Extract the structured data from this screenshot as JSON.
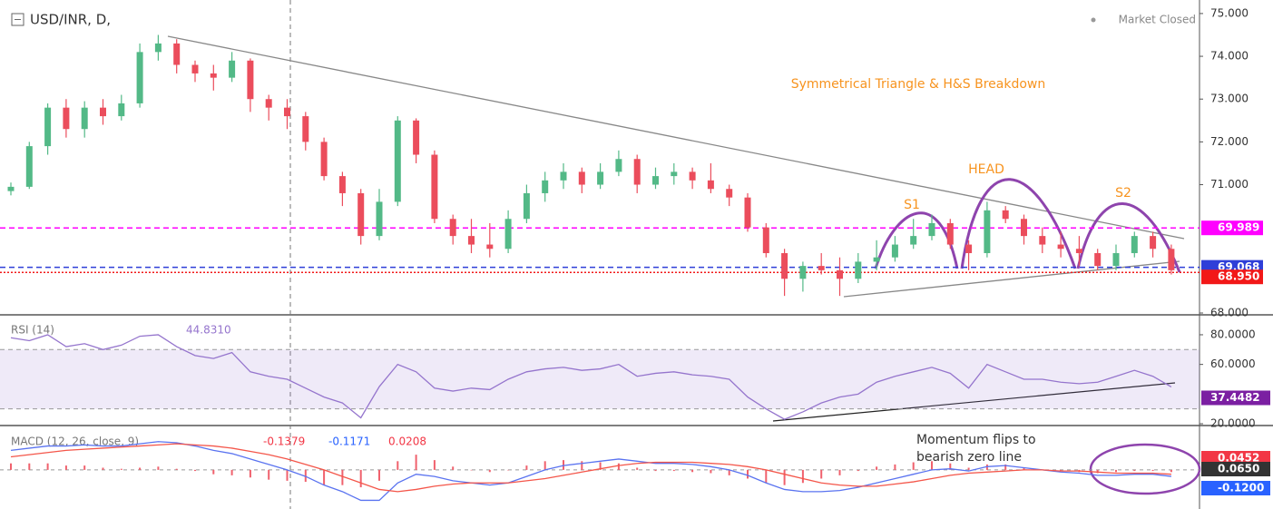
{
  "chart_data": [
    {
      "type": "candlestick",
      "title": "USD/INR, D,",
      "status": "Market Closed",
      "annotation": "Symmetrical Triangle & H&S Breakdown",
      "pattern_labels": [
        "S1",
        "HEAD",
        "S2"
      ],
      "up_color": "#53b987",
      "down_color": "#eb4d5c",
      "ylim": [
        68.0,
        75.21
      ],
      "yticks": [
        {
          "value": 75,
          "label": "75.000"
        },
        {
          "value": 74,
          "label": "74.000"
        },
        {
          "value": 73,
          "label": "73.000"
        },
        {
          "value": 72,
          "label": "72.000"
        },
        {
          "value": 71,
          "label": "71.000"
        },
        {
          "value": 68,
          "label": "68.000"
        }
      ],
      "levels": [
        {
          "value": 69.989,
          "label": "69.989",
          "color": "#ff00ff",
          "style": "dashed"
        },
        {
          "value": 69.068,
          "label": "69.068",
          "color": "#2f3fd8",
          "style": "dashed"
        },
        {
          "value": 68.95,
          "label": "68.950",
          "color": "#f21818",
          "style": "dotted"
        }
      ],
      "ohlc": [
        [
          70.85,
          71.05,
          70.75,
          70.95
        ],
        [
          70.95,
          72.0,
          70.9,
          71.9
        ],
        [
          71.9,
          72.9,
          71.7,
          72.8
        ],
        [
          72.8,
          73.0,
          72.1,
          72.3
        ],
        [
          72.3,
          72.95,
          72.1,
          72.8
        ],
        [
          72.8,
          73.0,
          72.4,
          72.6
        ],
        [
          72.6,
          73.1,
          72.5,
          72.9
        ],
        [
          72.9,
          74.3,
          72.8,
          74.1
        ],
        [
          74.1,
          74.5,
          73.9,
          74.3
        ],
        [
          74.3,
          74.4,
          73.6,
          73.8
        ],
        [
          73.8,
          73.9,
          73.4,
          73.6
        ],
        [
          73.6,
          73.8,
          73.2,
          73.5
        ],
        [
          73.5,
          74.1,
          73.4,
          73.9
        ],
        [
          73.9,
          73.95,
          72.7,
          73.0
        ],
        [
          73.0,
          73.1,
          72.5,
          72.8
        ],
        [
          72.8,
          73.0,
          72.3,
          72.6
        ],
        [
          72.6,
          72.7,
          71.8,
          72.0
        ],
        [
          72.0,
          72.1,
          71.1,
          71.2
        ],
        [
          71.2,
          71.3,
          70.5,
          70.8
        ],
        [
          70.8,
          70.9,
          69.6,
          69.8
        ],
        [
          69.8,
          70.9,
          69.7,
          70.6
        ],
        [
          70.6,
          72.6,
          70.5,
          72.5
        ],
        [
          72.5,
          72.55,
          71.5,
          71.7
        ],
        [
          71.7,
          71.8,
          70.1,
          70.2
        ],
        [
          70.2,
          70.3,
          69.6,
          69.8
        ],
        [
          69.8,
          70.2,
          69.4,
          69.6
        ],
        [
          69.6,
          70.1,
          69.3,
          69.5
        ],
        [
          69.5,
          70.4,
          69.4,
          70.2
        ],
        [
          70.2,
          71.0,
          70.1,
          70.8
        ],
        [
          70.8,
          71.3,
          70.6,
          71.1
        ],
        [
          71.1,
          71.5,
          70.9,
          71.3
        ],
        [
          71.3,
          71.4,
          70.8,
          71.0
        ],
        [
          71.0,
          71.5,
          70.9,
          71.3
        ],
        [
          71.3,
          71.8,
          71.2,
          71.6
        ],
        [
          71.6,
          71.7,
          70.8,
          71.0
        ],
        [
          71.0,
          71.4,
          70.9,
          71.2
        ],
        [
          71.2,
          71.5,
          71.0,
          71.3
        ],
        [
          71.3,
          71.4,
          70.9,
          71.1
        ],
        [
          71.1,
          71.5,
          70.8,
          70.9
        ],
        [
          70.9,
          71.0,
          70.5,
          70.7
        ],
        [
          70.7,
          70.8,
          69.9,
          70.0
        ],
        [
          70.0,
          70.1,
          69.3,
          69.4
        ],
        [
          69.4,
          69.5,
          68.4,
          68.8
        ],
        [
          68.8,
          69.2,
          68.5,
          69.1
        ],
        [
          69.1,
          69.4,
          68.9,
          69.0
        ],
        [
          69.0,
          69.3,
          68.4,
          68.8
        ],
        [
          68.8,
          69.4,
          68.7,
          69.2
        ],
        [
          69.2,
          69.7,
          69.0,
          69.3
        ],
        [
          69.3,
          69.8,
          69.2,
          69.6
        ],
        [
          69.6,
          70.2,
          69.5,
          69.8
        ],
        [
          69.8,
          70.3,
          69.7,
          70.1
        ],
        [
          70.1,
          70.2,
          69.5,
          69.6
        ],
        [
          69.6,
          69.7,
          69.0,
          69.4
        ],
        [
          69.4,
          70.6,
          69.3,
          70.4
        ],
        [
          70.4,
          70.5,
          70.1,
          70.2
        ],
        [
          70.2,
          70.3,
          69.6,
          69.8
        ],
        [
          69.8,
          70.0,
          69.4,
          69.6
        ],
        [
          69.6,
          69.9,
          69.3,
          69.5
        ],
        [
          69.5,
          69.8,
          69.1,
          69.4
        ],
        [
          69.4,
          69.5,
          69.0,
          69.1
        ],
        [
          69.1,
          69.6,
          69.0,
          69.4
        ],
        [
          69.4,
          69.9,
          69.3,
          69.8
        ],
        [
          69.8,
          69.9,
          69.3,
          69.5
        ],
        [
          69.5,
          69.6,
          68.9,
          69.0
        ]
      ]
    },
    {
      "type": "line",
      "title": "RSI (14)",
      "last_value": {
        "value": 44.831,
        "label": "44.8310"
      },
      "marker": {
        "value": 37.4482,
        "label": "37.4482"
      },
      "color": "#9575cd",
      "band": [
        30,
        70
      ],
      "ylim": [
        19.4,
        91.6
      ],
      "yticks": [
        {
          "value": 80,
          "label": "80.0000"
        },
        {
          "value": 60,
          "label": "60.0000"
        },
        {
          "value": 20,
          "label": "20.0000"
        }
      ],
      "values": [
        78,
        76,
        80,
        72,
        74,
        70,
        73,
        79,
        80,
        72,
        66,
        64,
        68,
        55,
        52,
        50,
        44,
        38,
        34,
        24,
        45,
        60,
        55,
        44,
        42,
        44,
        43,
        50,
        55,
        57,
        58,
        56,
        57,
        60,
        52,
        54,
        55,
        53,
        52,
        50,
        38,
        30,
        23,
        28,
        34,
        38,
        40,
        48,
        52,
        55,
        58,
        54,
        44,
        60,
        55,
        50,
        50,
        48,
        47,
        48,
        52,
        56,
        52,
        44.83
      ]
    },
    {
      "type": "line",
      "title": "MACD (12, 26, close, 9)",
      "header_values": [
        -0.1379,
        -0.1171,
        0.0208
      ],
      "header_colors": [
        "#f23645",
        "#2962ff",
        "#f23645"
      ],
      "annotation": [
        "Momentum flips to",
        "bearish zero line"
      ],
      "markers": [
        {
          "value": 0.0452,
          "label": "0.0452",
          "color": "#f23645"
        },
        {
          "value": 0.065,
          "label": "0.0650",
          "color": "#333333"
        },
        {
          "value": -0.12,
          "label": "-0.1200",
          "color": "#2962ff"
        }
      ],
      "ylim": [
        -0.36,
        0.4
      ],
      "hist_color": "#f0616d",
      "histogram": [
        0.06,
        0.06,
        0.06,
        0.04,
        0.04,
        0.02,
        0.01,
        0.02,
        0.03,
        0.01,
        -0.01,
        -0.04,
        -0.05,
        -0.07,
        -0.09,
        -0.1,
        -0.11,
        -0.14,
        -0.14,
        -0.16,
        -0.1,
        0.08,
        0.14,
        0.09,
        0.03,
        0.0,
        -0.02,
        0.0,
        0.04,
        0.08,
        0.09,
        0.08,
        0.07,
        0.06,
        0.02,
        -0.01,
        -0.01,
        -0.02,
        -0.03,
        -0.05,
        -0.08,
        -0.12,
        -0.14,
        -0.12,
        -0.08,
        -0.05,
        -0.01,
        0.03,
        0.05,
        0.07,
        0.08,
        0.06,
        0.02,
        0.05,
        0.05,
        0.02,
        0.0,
        -0.01,
        -0.02,
        -0.03,
        -0.02,
        -0.01,
        -0.01,
        -0.02
      ],
      "series": [
        {
          "color": "#5a73f0",
          "values": [
            0.18,
            0.2,
            0.22,
            0.22,
            0.23,
            0.22,
            0.22,
            0.24,
            0.26,
            0.25,
            0.22,
            0.18,
            0.15,
            0.1,
            0.05,
            0.0,
            -0.06,
            -0.14,
            -0.2,
            -0.28,
            -0.28,
            -0.12,
            -0.04,
            -0.06,
            -0.1,
            -0.12,
            -0.14,
            -0.12,
            -0.06,
            0.0,
            0.04,
            0.06,
            0.08,
            0.1,
            0.08,
            0.06,
            0.06,
            0.05,
            0.03,
            0.0,
            -0.05,
            -0.12,
            -0.18,
            -0.2,
            -0.2,
            -0.19,
            -0.16,
            -0.12,
            -0.08,
            -0.04,
            0.0,
            0.01,
            -0.01,
            0.03,
            0.04,
            0.02,
            0.0,
            -0.02,
            -0.03,
            -0.05,
            -0.05,
            -0.04,
            -0.04,
            -0.06
          ]
        },
        {
          "color": "#f4564a",
          "values": [
            0.12,
            0.14,
            0.16,
            0.18,
            0.19,
            0.2,
            0.21,
            0.22,
            0.23,
            0.24,
            0.23,
            0.22,
            0.2,
            0.17,
            0.14,
            0.1,
            0.05,
            0.0,
            -0.06,
            -0.12,
            -0.18,
            -0.2,
            -0.18,
            -0.15,
            -0.13,
            -0.12,
            -0.12,
            -0.12,
            -0.1,
            -0.08,
            -0.05,
            -0.02,
            0.01,
            0.04,
            0.06,
            0.07,
            0.07,
            0.07,
            0.06,
            0.05,
            0.03,
            0.0,
            -0.04,
            -0.08,
            -0.12,
            -0.14,
            -0.15,
            -0.15,
            -0.13,
            -0.11,
            -0.08,
            -0.05,
            -0.03,
            -0.02,
            -0.01,
            0.0,
            0.0,
            -0.01,
            -0.01,
            -0.02,
            -0.03,
            -0.03,
            -0.03,
            -0.04
          ]
        }
      ]
    }
  ]
}
